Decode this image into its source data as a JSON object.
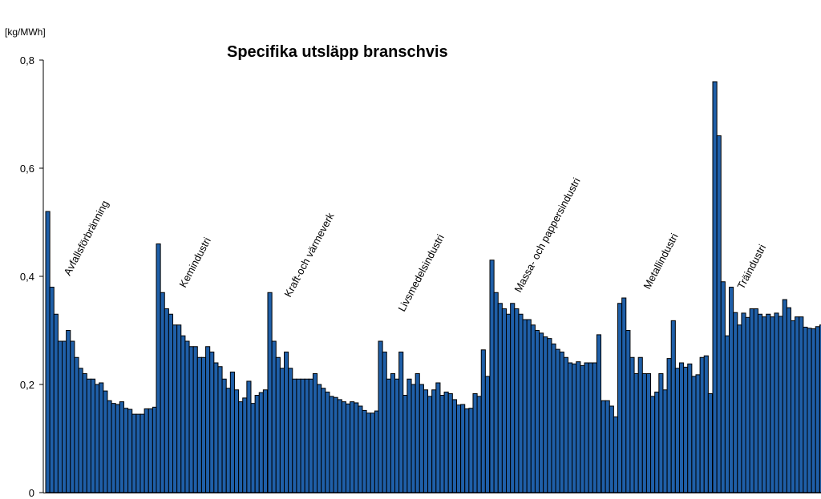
{
  "chart_data": {
    "type": "bar",
    "title": "Specifika utsläpp branschvis",
    "ylabel": "[kg/MWh]",
    "ylim": [
      0,
      0.8
    ],
    "yticks": [
      {
        "value": 0,
        "label": "0"
      },
      {
        "value": 0.2,
        "label": "0,2"
      },
      {
        "value": 0.4,
        "label": "0,4"
      },
      {
        "value": 0.6,
        "label": "0,6"
      },
      {
        "value": 0.8,
        "label": "0,8"
      }
    ],
    "colors": {
      "bar": "#1f5fa8",
      "outline": "#000000"
    },
    "groups": [
      {
        "name": "Avfallsförbränning",
        "values": [
          0.52,
          0.38,
          0.33,
          0.28,
          0.28,
          0.3,
          0.28,
          0.25,
          0.23,
          0.22,
          0.21,
          0.21,
          0.2,
          0.203,
          0.188,
          0.17,
          0.165,
          0.163,
          0.168,
          0.156,
          0.154,
          0.145,
          0.145,
          0.145,
          0.155,
          0.155,
          0.158
        ]
      },
      {
        "name": "Kemindustri",
        "values": [
          0.46,
          0.37,
          0.34,
          0.33,
          0.31,
          0.31,
          0.29,
          0.28,
          0.27,
          0.27,
          0.25,
          0.25,
          0.27,
          0.26,
          0.24,
          0.233,
          0.21,
          0.193,
          0.223,
          0.19,
          0.168,
          0.175,
          0.206,
          0.165,
          0.18,
          0.185,
          0.19
        ]
      },
      {
        "name": "Kraft-och värmeverk",
        "values": [
          0.37,
          0.28,
          0.25,
          0.23,
          0.26,
          0.23,
          0.21,
          0.21,
          0.21,
          0.21,
          0.21,
          0.22,
          0.2,
          0.193,
          0.186,
          0.178,
          0.176,
          0.172,
          0.168,
          0.164,
          0.168,
          0.166,
          0.16,
          0.152,
          0.147,
          0.147,
          0.151
        ]
      },
      {
        "name": "Livsmedelsindustri",
        "values": [
          0.28,
          0.26,
          0.21,
          0.22,
          0.21,
          0.26,
          0.18,
          0.21,
          0.2,
          0.22,
          0.2,
          0.19,
          0.178,
          0.19,
          0.203,
          0.18,
          0.186,
          0.183,
          0.172,
          0.162,
          0.163,
          0.155,
          0.156,
          0.183,
          0.178,
          0.264,
          0.215
        ]
      },
      {
        "name": "Massa- och pappersindustri",
        "values": [
          0.43,
          0.37,
          0.35,
          0.34,
          0.33,
          0.35,
          0.34,
          0.33,
          0.32,
          0.32,
          0.31,
          0.3,
          0.295,
          0.288,
          0.285,
          0.275,
          0.265,
          0.26,
          0.25,
          0.24,
          0.238,
          0.242,
          0.235,
          0.24,
          0.24,
          0.24,
          0.292
        ]
      },
      {
        "name": "Metallindustri",
        "values": [
          0.17,
          0.17,
          0.16,
          0.14,
          0.35,
          0.36,
          0.3,
          0.25,
          0.22,
          0.25,
          0.22,
          0.22,
          0.178,
          0.186,
          0.22,
          0.19,
          0.248,
          0.318,
          0.23,
          0.24,
          0.232,
          0.238,
          0.215,
          0.218,
          0.25,
          0.253,
          0.183
        ]
      },
      {
        "name": "Träindustri",
        "values": [
          0.76,
          0.66,
          0.39,
          0.29,
          0.38,
          0.333,
          0.31,
          0.332,
          0.324,
          0.34,
          0.34,
          0.33,
          0.325,
          0.33,
          0.325,
          0.332,
          0.326,
          0.357,
          0.342,
          0.318,
          0.325,
          0.325,
          0.306,
          0.304,
          0.303,
          0.307,
          0.31
        ]
      }
    ]
  }
}
